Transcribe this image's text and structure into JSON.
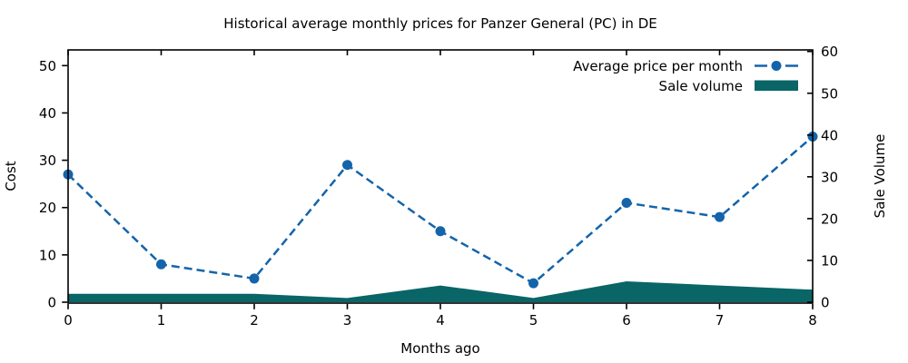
{
  "chart_data": {
    "type": "line",
    "title": "Historical average monthly prices for Panzer General (PC) in DE",
    "xlabel": "Months ago",
    "ylabel_left": "Cost",
    "ylabel_right": "Sale Volume",
    "x": [
      0,
      1,
      2,
      3,
      4,
      5,
      6,
      7,
      8
    ],
    "x_tick_labels": [
      "0",
      "1",
      "2",
      "3",
      "4",
      "5",
      "6",
      "7",
      "8"
    ],
    "series": [
      {
        "name": "Average price per month",
        "type": "dashed-line-with-markers",
        "axis": "left",
        "values": [
          27,
          8,
          5,
          29,
          15,
          4,
          21,
          18,
          35
        ],
        "color": "#1464aa",
        "marker": "circle"
      },
      {
        "name": "Sale volume",
        "type": "area",
        "axis": "right",
        "values": [
          2,
          2,
          2,
          1,
          4,
          1,
          5,
          4,
          3
        ],
        "color": "#0a6566"
      }
    ],
    "left_axis": {
      "label": "Cost",
      "min": 0,
      "max": 50,
      "ticks": [
        0,
        10,
        20,
        30,
        40,
        50
      ]
    },
    "right_axis": {
      "label": "Sale Volume",
      "min": 0,
      "max": 60,
      "ticks": [
        0,
        10,
        20,
        30,
        40,
        50,
        60
      ]
    },
    "grid": false,
    "legend_position": "top-right",
    "frame_color": "#000000"
  }
}
